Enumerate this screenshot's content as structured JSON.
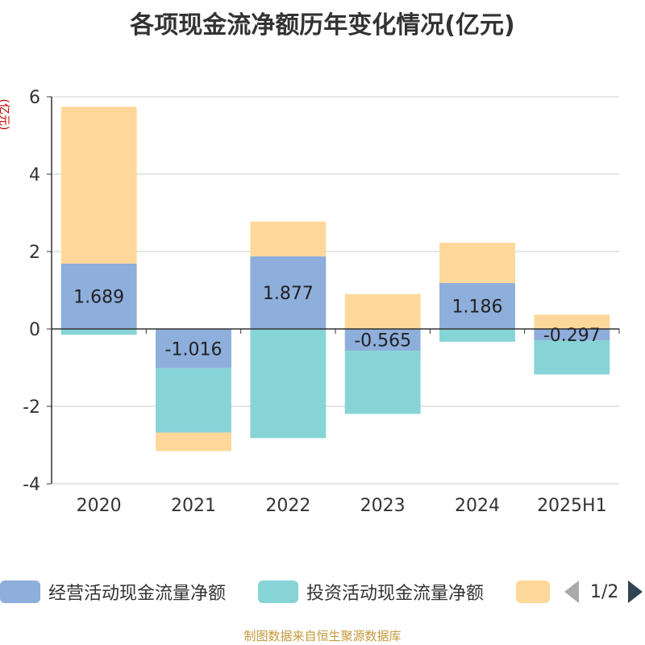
{
  "title": "各项现金流净额历年变化情况(亿元)",
  "unit_label": "(亿元)",
  "footer": "制图数据来自恒生聚源数据库",
  "pager": {
    "text": "1/2"
  },
  "colors": {
    "operating": "#8eaedb",
    "investing": "#86d4d6",
    "financing": "#fdd89a"
  },
  "chart_data": {
    "type": "bar",
    "stacked": true,
    "categories": [
      "2020",
      "2021",
      "2022",
      "2023",
      "2024",
      "2025H1"
    ],
    "ylim": [
      -4,
      6
    ],
    "yticks": [
      -4,
      -2,
      0,
      2,
      4,
      6
    ],
    "grid": true,
    "legend_position": "bottom",
    "series": [
      {
        "name": "经营活动现金流量净额",
        "values": [
          1.689,
          -1.016,
          1.877,
          -0.565,
          1.186,
          -0.297
        ],
        "labels": [
          "1.689",
          "-1.016",
          "1.877",
          "-0.565",
          "1.186",
          "-0.297"
        ]
      },
      {
        "name": "投资活动现金流量净额",
        "values": [
          -0.15,
          -1.66,
          -2.82,
          -1.63,
          -0.33,
          -0.88
        ]
      },
      {
        "name": "",
        "values": [
          4.05,
          -0.48,
          0.9,
          0.9,
          1.04,
          0.37
        ]
      }
    ]
  }
}
